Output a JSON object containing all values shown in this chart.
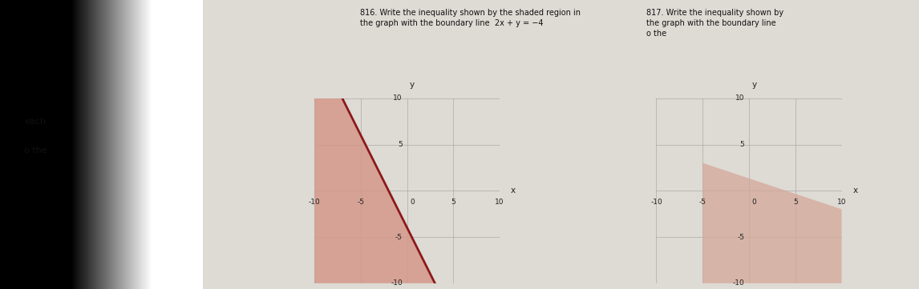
{
  "title_left": "816. Write the inequality shown by the shaded region in\nthe graph with the boundary line  2x + y = −4",
  "title_right": "817. Write the inequality shown by\nthe graph with the boundary line\no the",
  "sidebar_text": "each\no the",
  "graph1": {
    "xlim": [
      -10,
      10
    ],
    "ylim": [
      -10,
      10
    ],
    "xticks": [
      -10,
      -5,
      5,
      10
    ],
    "yticks": [
      -10,
      -5,
      5,
      10
    ],
    "shade_color": "#d4998a",
    "shade_alpha": 0.85,
    "line_color": "#8b1a1a",
    "line_width": 2.0,
    "shade_pts": [
      [
        -10,
        10
      ],
      [
        -7,
        10
      ],
      [
        3,
        -10
      ],
      [
        -10,
        -10
      ]
    ]
  },
  "graph2": {
    "xlim": [
      -10,
      10
    ],
    "ylim": [
      -10,
      10
    ],
    "xticks": [
      -10,
      -5,
      5,
      10
    ],
    "yticks": [
      -10,
      -5,
      5,
      10
    ],
    "shade_color": "#d4a898",
    "shade_alpha": 0.75,
    "line_color": "#8b1a1a",
    "line_width": 2.0,
    "shade_pts": [
      [
        -5,
        3
      ],
      [
        10,
        -2
      ],
      [
        10,
        -10
      ],
      [
        -5,
        -10
      ]
    ]
  },
  "left_sidebar_color": "#7a7a7a",
  "page_color": "#dedad4",
  "grid_color": "#888888",
  "axis_color": "#222222",
  "text_color": "#111111",
  "font_size_title": 7.0,
  "font_size_axis": 6.5,
  "font_size_sidebar": 8.0
}
